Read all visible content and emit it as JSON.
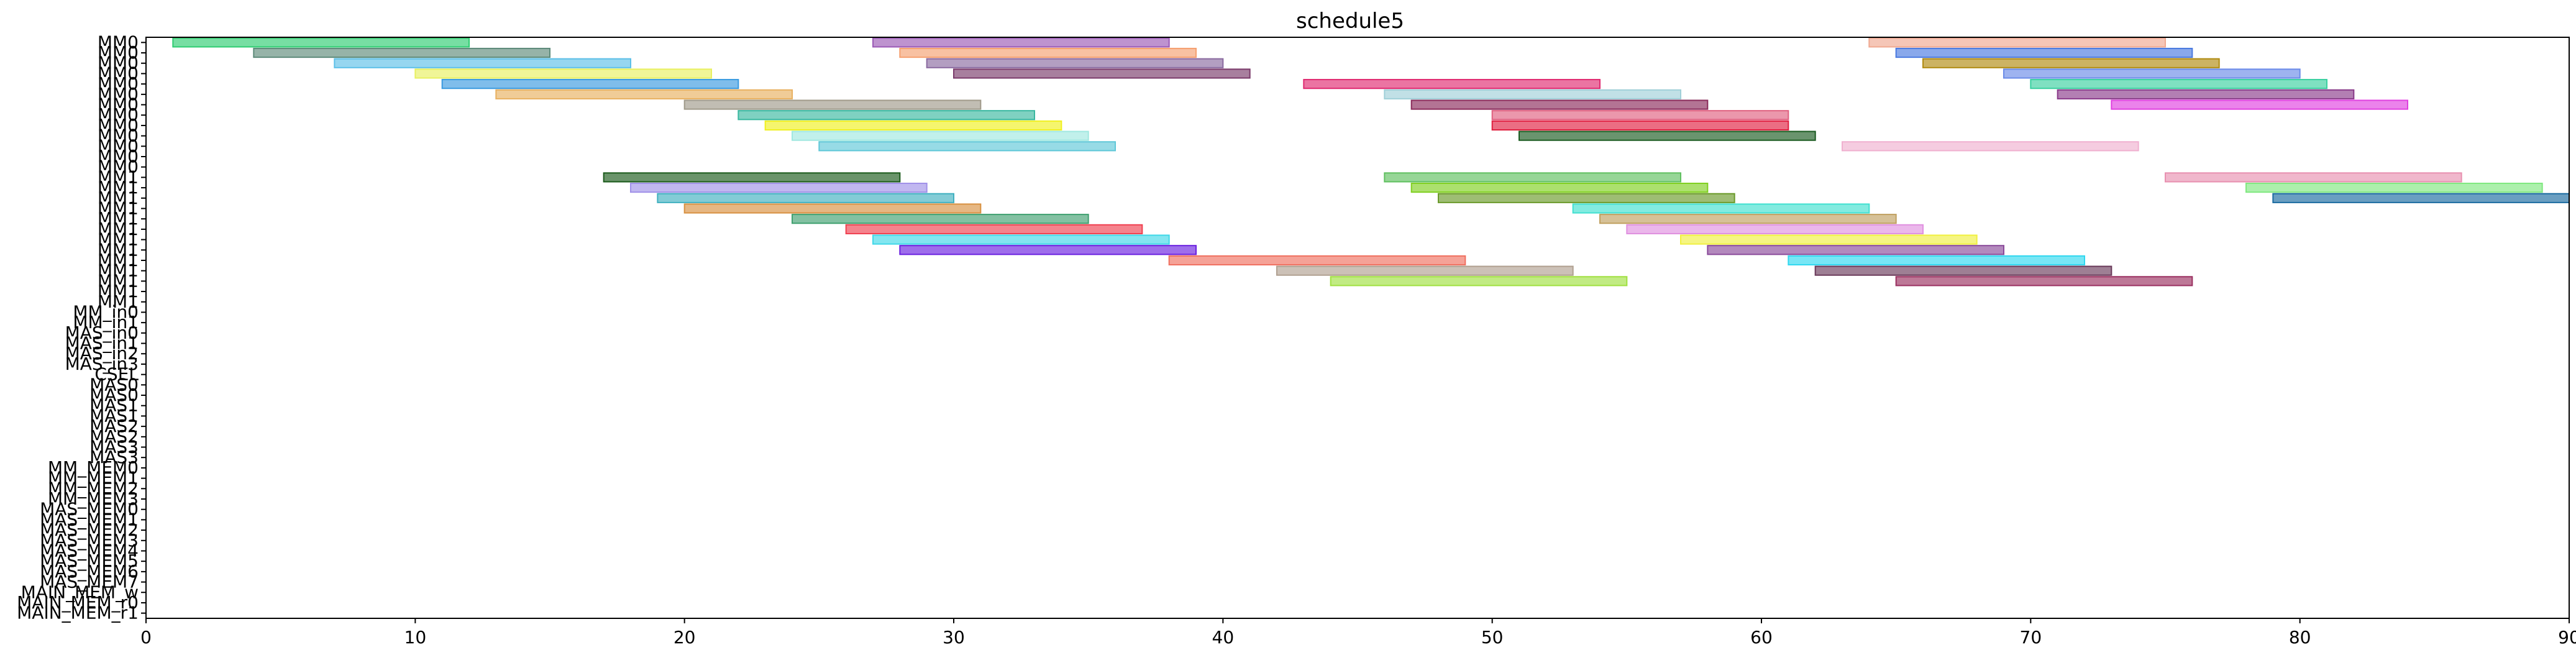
{
  "chart_data": {
    "type": "gantt",
    "title": "schedule5",
    "xlabel": "",
    "ylabel": "",
    "xlim": [
      0,
      90
    ],
    "x_ticks": [
      0,
      10,
      20,
      30,
      40,
      50,
      60,
      70,
      80,
      90
    ],
    "grid": false,
    "rows": [
      "MM0",
      "MM0",
      "MM0",
      "MM0",
      "MM0",
      "MM0",
      "MM0",
      "MM0",
      "MM0",
      "MM0",
      "MM0",
      "MM0",
      "MM0",
      "MM1",
      "MM1",
      "MM1",
      "MM1",
      "MM1",
      "MM1",
      "MM1",
      "MM1",
      "MM1",
      "MM1",
      "MM1",
      "MM1",
      "MM1",
      "MM_in0",
      "MM_in1",
      "MAS_in0",
      "MAS_in1",
      "MAS_in2",
      "MAS_in3",
      "CSEL",
      "MAS0",
      "MAS0",
      "MAS1",
      "MAS1",
      "MAS2",
      "MAS2",
      "MAS3",
      "MAS3",
      "MM_MEM0",
      "MM_MEM1",
      "MM_MEM2",
      "MM_MEM3",
      "MAS_MEM0",
      "MAS_MEM1",
      "MAS_MEM2",
      "MAS_MEM3",
      "MAS_MEM4",
      "MAS_MEM5",
      "MAS_MEM6",
      "MAS_MEM7",
      "MAIN_MEM_w",
      "MAIN_MEM_r0",
      "MAIN_MEM_r1"
    ],
    "tasks": [
      {
        "row": 0,
        "start": 1,
        "end": 12,
        "color": "#2ecc71"
      },
      {
        "row": 0,
        "start": 27,
        "end": 38,
        "color": "#9b59b6"
      },
      {
        "row": 0,
        "start": 64,
        "end": 75,
        "color": "#f0a890"
      },
      {
        "row": 1,
        "start": 4,
        "end": 15,
        "color": "#5d8a7a"
      },
      {
        "row": 1,
        "start": 28,
        "end": 39,
        "color": "#f5a070"
      },
      {
        "row": 1,
        "start": 65,
        "end": 76,
        "color": "#4a7ae0"
      },
      {
        "row": 2,
        "start": 7,
        "end": 18,
        "color": "#5dc0e8"
      },
      {
        "row": 2,
        "start": 29,
        "end": 40,
        "color": "#8a6aa0"
      },
      {
        "row": 2,
        "start": 66,
        "end": 77,
        "color": "#b08a10"
      },
      {
        "row": 3,
        "start": 10,
        "end": 21,
        "color": "#e8f060"
      },
      {
        "row": 3,
        "start": 30,
        "end": 41,
        "color": "#7a3a6a"
      },
      {
        "row": 3,
        "start": 69,
        "end": 80,
        "color": "#6a8ae8"
      },
      {
        "row": 4,
        "start": 11,
        "end": 22,
        "color": "#3a9ae0"
      },
      {
        "row": 4,
        "start": 43,
        "end": 54,
        "color": "#e02a70"
      },
      {
        "row": 4,
        "start": 70,
        "end": 81,
        "color": "#3ad0a0"
      },
      {
        "row": 5,
        "start": 13,
        "end": 24,
        "color": "#e8b060"
      },
      {
        "row": 5,
        "start": 46,
        "end": 57,
        "color": "#a0d0d8"
      },
      {
        "row": 5,
        "start": 71,
        "end": 82,
        "color": "#8a3a8a"
      },
      {
        "row": 6,
        "start": 20,
        "end": 31,
        "color": "#a09a8a"
      },
      {
        "row": 6,
        "start": 47,
        "end": 58,
        "color": "#8a2a5a"
      },
      {
        "row": 6,
        "start": 73,
        "end": 84,
        "color": "#e040e0"
      },
      {
        "row": 7,
        "start": 22,
        "end": 33,
        "color": "#3ab8a0"
      },
      {
        "row": 7,
        "start": 50,
        "end": 61,
        "color": "#e06080"
      },
      {
        "row": 8,
        "start": 23,
        "end": 34,
        "color": "#f0f020"
      },
      {
        "row": 8,
        "start": 50,
        "end": 61,
        "color": "#e02040"
      },
      {
        "row": 9,
        "start": 24,
        "end": 35,
        "color": "#a0e8e0"
      },
      {
        "row": 9,
        "start": 51,
        "end": 62,
        "color": "#1a5a20"
      },
      {
        "row": 10,
        "start": 25,
        "end": 36,
        "color": "#60c8d8"
      },
      {
        "row": 10,
        "start": 63,
        "end": 74,
        "color": "#f0b0d0"
      },
      {
        "row": 13,
        "start": 17,
        "end": 28,
        "color": "#1a5a1a"
      },
      {
        "row": 13,
        "start": 46,
        "end": 57,
        "color": "#60c060"
      },
      {
        "row": 13,
        "start": 75,
        "end": 86,
        "color": "#e890b0"
      },
      {
        "row": 14,
        "start": 18,
        "end": 29,
        "color": "#a090e8"
      },
      {
        "row": 14,
        "start": 47,
        "end": 58,
        "color": "#80d020"
      },
      {
        "row": 14,
        "start": 78,
        "end": 89,
        "color": "#80e880"
      },
      {
        "row": 15,
        "start": 19,
        "end": 30,
        "color": "#40b0c0"
      },
      {
        "row": 15,
        "start": 48,
        "end": 59,
        "color": "#6a9a2a"
      },
      {
        "row": 15,
        "start": 79,
        "end": 90,
        "color": "#1a6aa0"
      },
      {
        "row": 16,
        "start": 20,
        "end": 31,
        "color": "#d89040"
      },
      {
        "row": 16,
        "start": 53,
        "end": 64,
        "color": "#40e0d0"
      },
      {
        "row": 17,
        "start": 24,
        "end": 35,
        "color": "#40a070"
      },
      {
        "row": 17,
        "start": 54,
        "end": 65,
        "color": "#c0a060"
      },
      {
        "row": 18,
        "start": 26,
        "end": 37,
        "color": "#f04050"
      },
      {
        "row": 18,
        "start": 55,
        "end": 66,
        "color": "#e090e0"
      },
      {
        "row": 19,
        "start": 27,
        "end": 38,
        "color": "#40d8e8"
      },
      {
        "row": 19,
        "start": 57,
        "end": 68,
        "color": "#f0f040"
      },
      {
        "row": 20,
        "start": 28,
        "end": 39,
        "color": "#6a20e0"
      },
      {
        "row": 20,
        "start": 58,
        "end": 69,
        "color": "#8a4a9a"
      },
      {
        "row": 21,
        "start": 38,
        "end": 49,
        "color": "#f07060"
      },
      {
        "row": 21,
        "start": 61,
        "end": 72,
        "color": "#30d8f0"
      },
      {
        "row": 22,
        "start": 42,
        "end": 53,
        "color": "#b0a090"
      },
      {
        "row": 22,
        "start": 62,
        "end": 73,
        "color": "#6a3a5a"
      },
      {
        "row": 23,
        "start": 44,
        "end": 55,
        "color": "#a0e040"
      },
      {
        "row": 23,
        "start": 65,
        "end": 76,
        "color": "#9a3060"
      }
    ]
  }
}
